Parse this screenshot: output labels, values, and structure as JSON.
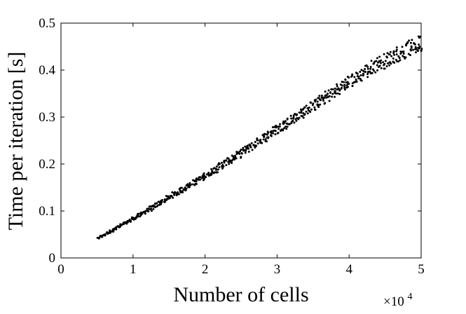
{
  "chart_data": {
    "type": "scatter",
    "xlabel": "Number of cells",
    "ylabel": "Time per iteration [s]",
    "x_exponent_label": "×10",
    "x_exponent_power": "4",
    "xlim": [
      0,
      50000
    ],
    "ylim": [
      0,
      0.5
    ],
    "xticks": [
      0,
      10000,
      20000,
      30000,
      40000,
      50000
    ],
    "xtick_labels": [
      "0",
      "1",
      "2",
      "3",
      "4",
      "5"
    ],
    "yticks": [
      0,
      0.1,
      0.2,
      0.3,
      0.4,
      0.5
    ],
    "ytick_labels": [
      "0",
      "0.1",
      "0.2",
      "0.3",
      "0.4",
      "0.5"
    ],
    "grid": false,
    "box": true,
    "marker_color": "#000000",
    "series": [
      {
        "x": [
          5200,
          5600,
          6000,
          6400,
          6800,
          7200,
          7600,
          8000,
          8400,
          8800,
          9200,
          9600,
          10000,
          10400,
          10800,
          11200,
          11600,
          12000,
          12400,
          12800,
          13200,
          13600,
          14000,
          14400,
          14800,
          15200,
          15600,
          16000,
          16400,
          16800,
          17200,
          17600,
          18000,
          18400,
          18800,
          19200,
          19600,
          20000,
          20400,
          20800,
          21200,
          21600,
          22000,
          22400,
          22800,
          23200,
          23600,
          24000,
          24400,
          24800,
          25200,
          25600,
          26000,
          26400,
          26800,
          27200,
          27600,
          28000,
          28400,
          28800,
          29200,
          29600,
          30000,
          30400,
          30800,
          31200,
          31600,
          32000,
          32400,
          32800,
          33200,
          33600,
          34000,
          34400,
          34800,
          35200,
          35600,
          36000,
          36400,
          36800,
          37200,
          37600,
          38000,
          38400,
          38800,
          39200,
          39600,
          40000,
          40400,
          40800,
          41200,
          41600,
          42000,
          42400,
          42800,
          43200,
          43600,
          44000,
          44400,
          44800,
          45200,
          45600,
          46000,
          46400,
          46800,
          47200,
          47600,
          48000,
          48400,
          48800,
          49200,
          49600,
          49900
        ],
        "y": [
          0.042,
          0.046,
          0.049,
          0.053,
          0.056,
          0.059,
          0.062,
          0.066,
          0.069,
          0.073,
          0.076,
          0.08,
          0.083,
          0.087,
          0.09,
          0.094,
          0.098,
          0.101,
          0.105,
          0.108,
          0.112,
          0.116,
          0.119,
          0.123,
          0.127,
          0.13,
          0.134,
          0.138,
          0.141,
          0.145,
          0.149,
          0.152,
          0.156,
          0.16,
          0.164,
          0.167,
          0.171,
          0.175,
          0.179,
          0.183,
          0.187,
          0.19,
          0.194,
          0.198,
          0.202,
          0.206,
          0.21,
          0.214,
          0.218,
          0.222,
          0.226,
          0.23,
          0.234,
          0.238,
          0.242,
          0.246,
          0.25,
          0.254,
          0.258,
          0.262,
          0.266,
          0.27,
          0.274,
          0.278,
          0.282,
          0.286,
          0.29,
          0.294,
          0.298,
          0.302,
          0.306,
          0.31,
          0.314,
          0.318,
          0.322,
          0.326,
          0.33,
          0.334,
          0.338,
          0.342,
          0.346,
          0.35,
          0.354,
          0.358,
          0.362,
          0.366,
          0.37,
          0.374,
          0.378,
          0.382,
          0.386,
          0.39,
          0.394,
          0.398,
          0.402,
          0.406,
          0.41,
          0.413,
          0.416,
          0.419,
          0.422,
          0.425,
          0.428,
          0.431,
          0.434,
          0.437,
          0.44,
          0.443,
          0.446,
          0.449,
          0.452,
          0.455,
          0.457
        ],
        "y_spread": [
          0.001,
          0.002,
          0.002,
          0.002,
          0.003,
          0.003,
          0.003,
          0.003,
          0.003,
          0.003,
          0.003,
          0.004,
          0.004,
          0.004,
          0.004,
          0.004,
          0.004,
          0.004,
          0.005,
          0.005,
          0.005,
          0.005,
          0.005,
          0.005,
          0.005,
          0.005,
          0.006,
          0.006,
          0.006,
          0.006,
          0.006,
          0.006,
          0.006,
          0.006,
          0.007,
          0.007,
          0.007,
          0.007,
          0.007,
          0.007,
          0.007,
          0.008,
          0.008,
          0.008,
          0.008,
          0.008,
          0.008,
          0.008,
          0.008,
          0.009,
          0.009,
          0.009,
          0.009,
          0.009,
          0.009,
          0.009,
          0.009,
          0.01,
          0.01,
          0.01,
          0.01,
          0.01,
          0.01,
          0.01,
          0.011,
          0.011,
          0.011,
          0.011,
          0.011,
          0.011,
          0.011,
          0.012,
          0.012,
          0.012,
          0.012,
          0.012,
          0.012,
          0.012,
          0.012,
          0.013,
          0.013,
          0.013,
          0.013,
          0.013,
          0.013,
          0.013,
          0.014,
          0.014,
          0.014,
          0.014,
          0.014,
          0.014,
          0.014,
          0.015,
          0.015,
          0.015,
          0.015,
          0.015,
          0.015,
          0.016,
          0.016,
          0.016,
          0.016,
          0.016,
          0.016,
          0.017,
          0.017,
          0.017,
          0.017,
          0.017,
          0.018,
          0.018,
          0.018
        ]
      }
    ]
  }
}
